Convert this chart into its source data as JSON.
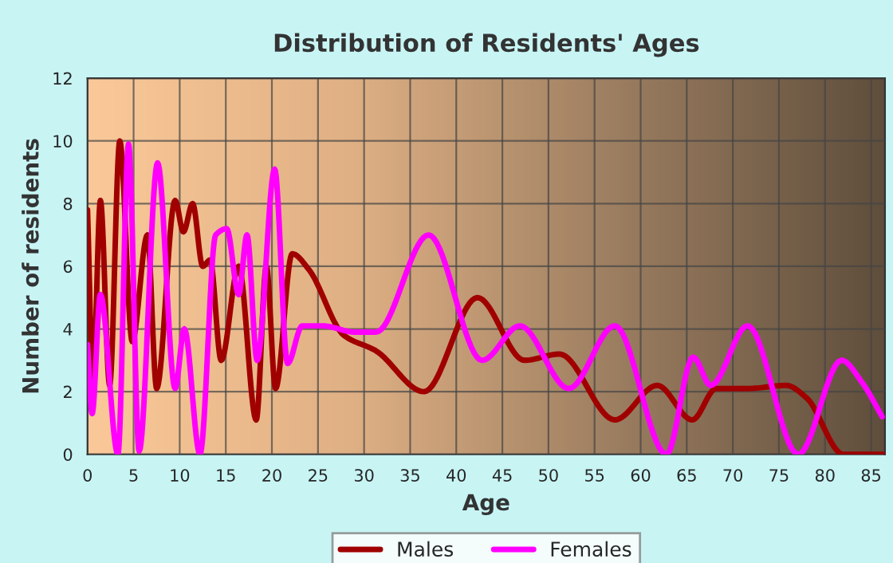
{
  "chart_data": {
    "type": "line",
    "title": "Distribution of Residents' Ages",
    "xlabel": "Age",
    "ylabel": "Number of residents",
    "xlim": [
      0,
      86.5
    ],
    "xticks": [
      0,
      5,
      10,
      15,
      20,
      25,
      30,
      35,
      40,
      45,
      50,
      55,
      60,
      65,
      70,
      75,
      80,
      85
    ],
    "ylim": [
      0,
      12
    ],
    "yticks": [
      0,
      2,
      4,
      6,
      8,
      10,
      12
    ],
    "grid": true,
    "legend": "bottom",
    "series": [
      {
        "name": "Males",
        "color": "#a00000",
        "x": [
          0,
          0.6,
          1.4,
          2.4,
          3.5,
          4.85,
          6.5,
          7.5,
          9.5,
          10.4,
          11.4,
          12.5,
          13.3,
          14.5,
          16.4,
          18.3,
          19.4,
          20.4,
          22.2,
          24,
          27.8,
          31.3,
          36.5,
          42.3,
          47.4,
          51.2,
          57.2,
          61.8,
          65.6,
          68.2,
          71.6,
          75.8,
          78,
          82,
          86.3
        ],
        "values": [
          7.8,
          2.4,
          8.1,
          2.2,
          10,
          3.6,
          7,
          2.1,
          8.1,
          7.1,
          8,
          6,
          6.2,
          3,
          6,
          1.1,
          6,
          2.1,
          6.4,
          5.9,
          3.8,
          3.3,
          2,
          5,
          3,
          3.2,
          1.1,
          2.2,
          1.1,
          2.1,
          2.1,
          2.2,
          1.8,
          0,
          0
        ]
      },
      {
        "name": "Females",
        "color": "#ff00ff",
        "x": [
          0,
          0.5,
          1.4,
          3.3,
          4.45,
          5.6,
          7.6,
          9.5,
          10.5,
          12.2,
          13.9,
          15.1,
          16.4,
          17.3,
          18.4,
          20.3,
          21.7,
          23.3,
          25.5,
          29,
          31.3,
          37,
          42.8,
          46.9,
          52.2,
          57.2,
          62.8,
          65.7,
          67.6,
          71.6,
          77.1,
          81.8,
          84,
          86.2
        ],
        "values": [
          3.5,
          1.3,
          5.1,
          0,
          9.9,
          0.1,
          9.3,
          2.1,
          4,
          0,
          7,
          7.2,
          5.1,
          7,
          3,
          9.1,
          2.9,
          4.1,
          4.1,
          3.9,
          3.9,
          7,
          3,
          4.1,
          2.1,
          4.1,
          0,
          3.1,
          2.2,
          4.1,
          0,
          3,
          2.3,
          1.2
        ]
      }
    ]
  }
}
